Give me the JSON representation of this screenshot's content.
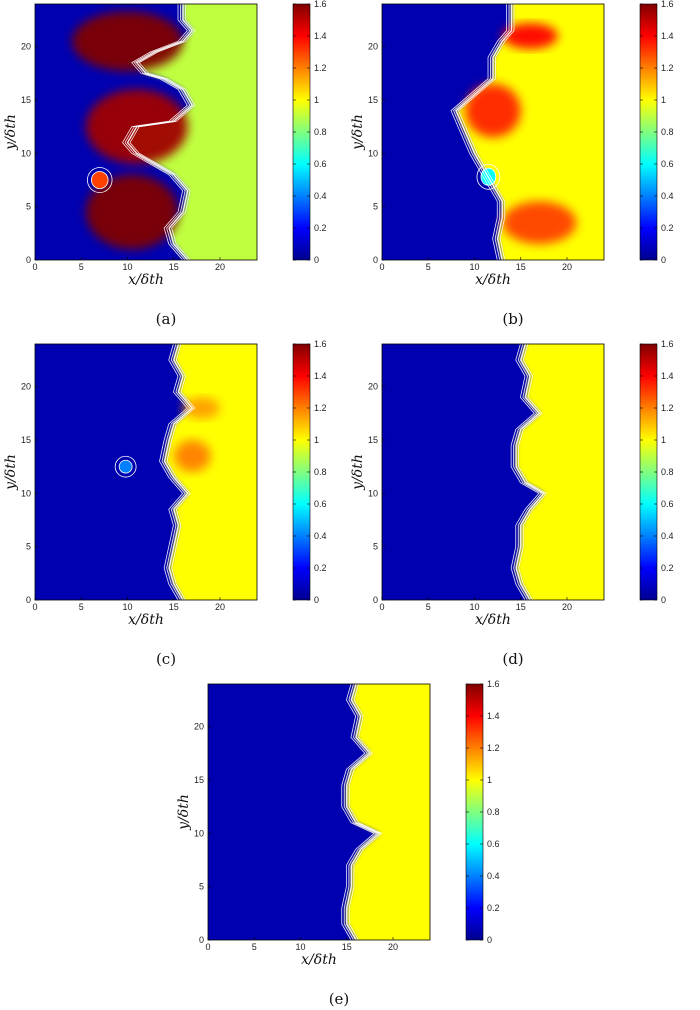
{
  "chart_data": [
    {
      "type": "heatmap",
      "caption": "(a)",
      "xlabel": "x/δth",
      "ylabel": "y/δth",
      "xlim": [
        0,
        24
      ],
      "ylim": [
        0,
        24
      ],
      "x_ticks": [
        0,
        5,
        10,
        15,
        20
      ],
      "y_ticks": [
        0,
        5,
        10,
        15,
        20
      ],
      "colorbar": {
        "range": [
          0,
          1.6
        ],
        "ticks": [
          0,
          0.2,
          0.4,
          0.6,
          0.8,
          1,
          1.2,
          1.4,
          1.6
        ]
      },
      "front": [
        [
          16.5,
          0
        ],
        [
          15,
          1.5
        ],
        [
          14.5,
          3
        ],
        [
          16,
          4.5
        ],
        [
          16.5,
          6.5
        ],
        [
          15,
          8
        ],
        [
          13,
          9
        ],
        [
          11,
          10
        ],
        [
          10,
          11
        ],
        [
          11,
          12.5
        ],
        [
          15,
          13
        ],
        [
          17,
          14.5
        ],
        [
          16,
          16
        ],
        [
          14,
          17
        ],
        [
          12,
          17.5
        ],
        [
          11,
          18.5
        ],
        [
          13,
          19.5
        ],
        [
          16,
          20.5
        ],
        [
          17,
          21.5
        ],
        [
          16,
          22.5
        ],
        [
          16,
          24
        ]
      ],
      "hot_lobes": [
        {
          "center": [
            10.5,
            4.5
          ],
          "radius": [
            5,
            3.5
          ],
          "peak": 1.6
        },
        {
          "center": [
            11,
            12.5
          ],
          "radius": [
            5.5,
            3.5
          ],
          "peak": 1.55
        },
        {
          "center": [
            10,
            20.5
          ],
          "radius": [
            6,
            2.8
          ],
          "peak": 1.6
        }
      ],
      "far_field": 0.9,
      "pockets": [
        {
          "center": [
            7,
            7.5
          ],
          "radius": [
            0.9,
            0.8
          ],
          "peak": 1.3
        }
      ]
    },
    {
      "type": "heatmap",
      "caption": "(b)",
      "xlabel": "x/δth",
      "ylabel": "y/δth",
      "xlim": [
        0,
        24
      ],
      "ylim": [
        0,
        24
      ],
      "x_ticks": [
        0,
        5,
        10,
        15,
        20
      ],
      "y_ticks": [
        0,
        5,
        10,
        15,
        20
      ],
      "colorbar": {
        "range": [
          0,
          1.6
        ],
        "ticks": [
          0,
          0.2,
          0.4,
          0.6,
          0.8,
          1,
          1.2,
          1.4,
          1.6
        ]
      },
      "front": [
        [
          13,
          0
        ],
        [
          12.5,
          2
        ],
        [
          13,
          4
        ],
        [
          13,
          5.5
        ],
        [
          12,
          7
        ],
        [
          11,
          8.5
        ],
        [
          10,
          10
        ],
        [
          9,
          12
        ],
        [
          8,
          14
        ],
        [
          10,
          15.5
        ],
        [
          12,
          17
        ],
        [
          12,
          19
        ],
        [
          13,
          20.5
        ],
        [
          14,
          21.5
        ],
        [
          14,
          24
        ]
      ],
      "hot_lobes": [
        {
          "center": [
            12,
            14
          ],
          "radius": [
            3,
            2.5
          ],
          "peak": 1.35
        },
        {
          "center": [
            17,
            3.5
          ],
          "radius": [
            4,
            2
          ],
          "peak": 1.3
        },
        {
          "center": [
            16,
            21
          ],
          "radius": [
            3,
            1.2
          ],
          "peak": 1.4
        }
      ],
      "far_field": 1.0,
      "pockets": [
        {
          "center": [
            11.5,
            7.8
          ],
          "radius": [
            0.8,
            0.8
          ],
          "peak": 0.6
        }
      ]
    },
    {
      "type": "heatmap",
      "caption": "(c)",
      "xlabel": "x/δth",
      "ylabel": "y/δth",
      "xlim": [
        0,
        24
      ],
      "ylim": [
        0,
        24
      ],
      "x_ticks": [
        0,
        5,
        10,
        15,
        20
      ],
      "y_ticks": [
        0,
        5,
        10,
        15,
        20
      ],
      "colorbar": {
        "range": [
          0,
          1.6
        ],
        "ticks": [
          0,
          0.2,
          0.4,
          0.6,
          0.8,
          1,
          1.2,
          1.4,
          1.6
        ]
      },
      "front": [
        [
          16,
          0
        ],
        [
          15,
          1.5
        ],
        [
          14.5,
          3
        ],
        [
          15,
          5
        ],
        [
          15.5,
          7
        ],
        [
          15,
          8.5
        ],
        [
          16.5,
          10
        ],
        [
          15,
          11.5
        ],
        [
          14,
          13
        ],
        [
          14.5,
          15
        ],
        [
          15,
          16.5
        ],
        [
          17,
          18
        ],
        [
          15.5,
          19.5
        ],
        [
          16,
          21
        ],
        [
          15,
          22.5
        ],
        [
          15.5,
          24
        ]
      ],
      "hot_lobes": [
        {
          "center": [
            17,
            13.5
          ],
          "radius": [
            2,
            1.5
          ],
          "peak": 1.2
        },
        {
          "center": [
            18,
            18
          ],
          "radius": [
            2,
            1
          ],
          "peak": 1.15
        }
      ],
      "far_field": 1.0,
      "pockets": [
        {
          "center": [
            9.8,
            12.5
          ],
          "radius": [
            0.7,
            0.6
          ],
          "peak": 0.4
        }
      ]
    },
    {
      "type": "heatmap",
      "caption": "(d)",
      "xlabel": "x/δth",
      "ylabel": "y/δth",
      "xlim": [
        0,
        24
      ],
      "ylim": [
        0,
        24
      ],
      "x_ticks": [
        0,
        5,
        10,
        15,
        20
      ],
      "y_ticks": [
        0,
        5,
        10,
        15,
        20
      ],
      "colorbar": {
        "range": [
          0,
          1.6
        ],
        "ticks": [
          0,
          0.2,
          0.4,
          0.6,
          0.8,
          1,
          1.2,
          1.4,
          1.6
        ]
      },
      "front": [
        [
          16,
          0
        ],
        [
          15,
          1.5
        ],
        [
          14.5,
          3
        ],
        [
          15,
          5
        ],
        [
          15,
          7
        ],
        [
          16,
          8.5
        ],
        [
          17.5,
          10
        ],
        [
          15.5,
          11
        ],
        [
          14.5,
          12.5
        ],
        [
          14.5,
          14.5
        ],
        [
          15,
          16
        ],
        [
          17,
          17.5
        ],
        [
          15.5,
          19
        ],
        [
          16,
          21
        ],
        [
          15,
          22.5
        ],
        [
          15.5,
          24
        ]
      ],
      "hot_lobes": [],
      "far_field": 1.0,
      "pockets": []
    },
    {
      "type": "heatmap",
      "caption": "(e)",
      "xlabel": "x/δth",
      "ylabel": "y/δth",
      "xlim": [
        0,
        24
      ],
      "ylim": [
        0,
        24
      ],
      "x_ticks": [
        0,
        5,
        10,
        15,
        20
      ],
      "y_ticks": [
        0,
        5,
        10,
        15,
        20
      ],
      "colorbar": {
        "range": [
          0,
          1.6
        ],
        "ticks": [
          0,
          0.2,
          0.4,
          0.6,
          0.8,
          1,
          1.2,
          1.4,
          1.6
        ]
      },
      "front": [
        [
          16,
          0
        ],
        [
          15,
          1.5
        ],
        [
          15,
          3
        ],
        [
          15.5,
          5
        ],
        [
          15.5,
          7
        ],
        [
          16.5,
          8.5
        ],
        [
          18.5,
          10
        ],
        [
          16,
          11
        ],
        [
          15,
          12.5
        ],
        [
          15,
          14.5
        ],
        [
          15.5,
          16
        ],
        [
          17.5,
          17.5
        ],
        [
          16,
          19
        ],
        [
          16.5,
          21
        ],
        [
          15.5,
          22.5
        ],
        [
          16,
          24
        ]
      ],
      "hot_lobes": [],
      "far_field": 1.0,
      "pockets": []
    }
  ]
}
